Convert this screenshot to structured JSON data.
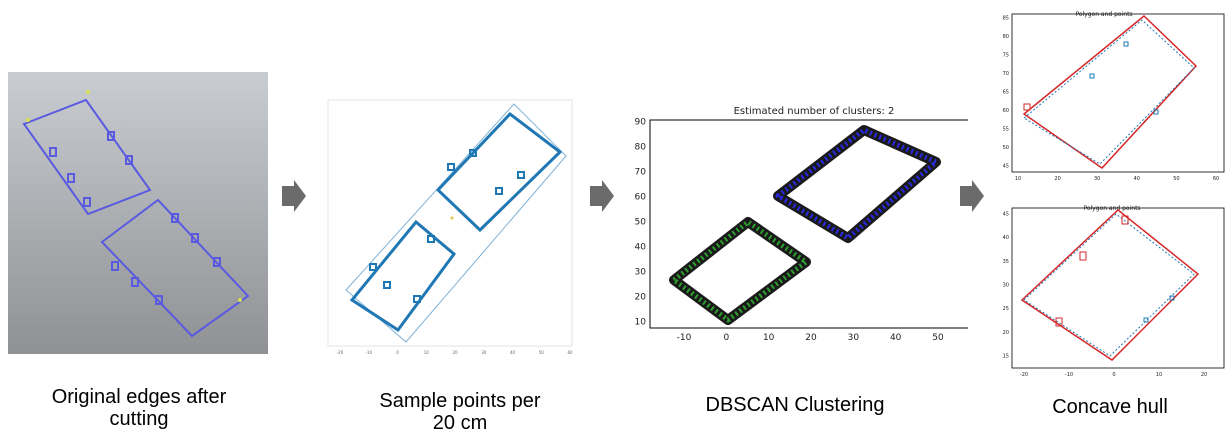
{
  "steps": [
    {
      "caption_line1": "Original edges after",
      "caption_line2": "cutting"
    },
    {
      "caption_line1": "Sample points per",
      "caption_line2": "20 cm"
    },
    {
      "caption_line1": "DBSCAN Clustering",
      "caption_line2": ""
    },
    {
      "caption_line1": "Concave hull",
      "caption_line2": ""
    }
  ],
  "panel2": {
    "x_ticks": [
      "-20",
      "-10",
      "0",
      "10",
      "20",
      "30",
      "40",
      "50",
      "60"
    ]
  },
  "panel3": {
    "title": "Estimated number of clusters: 2",
    "x_ticks": [
      "-10",
      "0",
      "10",
      "20",
      "30",
      "40",
      "50"
    ],
    "y_ticks": [
      "90",
      "80",
      "70",
      "60",
      "50",
      "40",
      "30",
      "20",
      "10"
    ],
    "colors": {
      "cluster_a": "#2a2ae6",
      "cluster_b": "#2e9e2e"
    }
  },
  "panel4_top": {
    "title": "Polygon and points",
    "x_ticks": [
      "10",
      "20",
      "30",
      "40",
      "50",
      "60"
    ],
    "y_ticks": [
      "85",
      "80",
      "75",
      "70",
      "65",
      "60",
      "55",
      "50",
      "45"
    ]
  },
  "panel4_bottom": {
    "title": "Polygon and points",
    "x_ticks": [
      "-20",
      "-10",
      "0",
      "10",
      "20"
    ],
    "y_ticks": [
      "45",
      "40",
      "35",
      "30",
      "25",
      "20",
      "15"
    ]
  },
  "colors": {
    "edge_blue": "#5a5ae0",
    "sample_blue": "#1f77b4",
    "hull_red": "#d62728",
    "arrow": "#6b6b6b"
  }
}
